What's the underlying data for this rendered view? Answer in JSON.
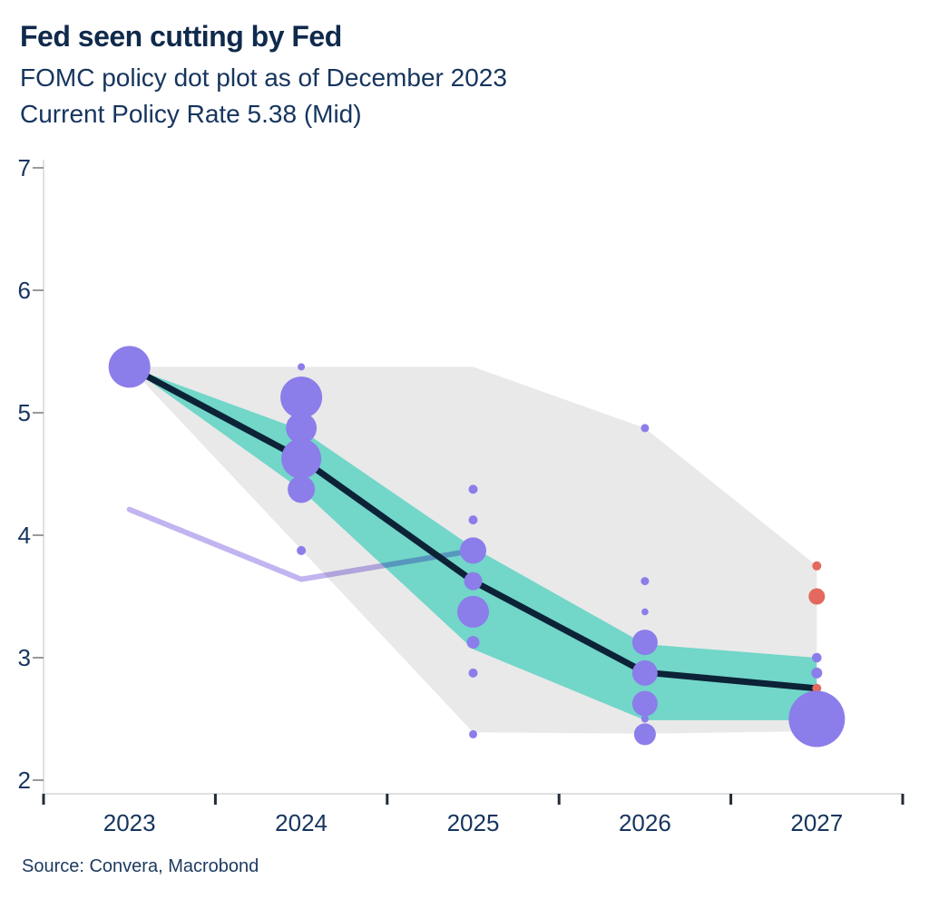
{
  "header": {
    "title": "Fed seen cutting by Fed",
    "subtitle": "FOMC policy dot plot as of December 2023",
    "subtitle2": "Current Policy Rate 5.38 (Mid)"
  },
  "footer": {
    "source": "Source: Convera, Macrobond"
  },
  "chart_data": {
    "type": "scatter",
    "title": "Fed seen cutting by Fed",
    "subtitle": "FOMC policy dot plot as of December 2023",
    "subtitle2": "Current Policy Rate 5.38 (Mid)",
    "source": "Source: Convera, Macrobond",
    "x_categories": [
      "2023",
      "2024",
      "2025",
      "2026",
      "2027"
    ],
    "y_ticks": [
      2,
      3,
      4,
      5,
      6,
      7
    ],
    "y_range": [
      1.9,
      7.05
    ],
    "grid": "off",
    "legend": "none",
    "colors": {
      "purple": "#8b7dea",
      "red": "#e3695f",
      "median_line": "#0c2236",
      "market_line": "#c2b4f0",
      "central_band": "#72d6c9",
      "range_band": "#e9e9e9",
      "axis_text": "#16355e",
      "axis_line": "#d6d6d6",
      "x_tick": "#222b36",
      "y_tick": "#8e8e8e"
    },
    "bands": {
      "full_range": {
        "label": "full-range-of-dots",
        "top": [
          [
            "2023",
            5.375
          ],
          [
            "2025",
            5.375
          ],
          [
            "2026",
            4.875
          ],
          [
            "2027",
            3.75
          ]
        ],
        "bottom": [
          [
            "2023",
            5.375
          ],
          [
            "2025",
            2.39
          ],
          [
            "2026",
            2.38
          ],
          [
            "2027",
            2.4
          ]
        ]
      },
      "central_tendency": {
        "label": "central-tendency-of-dots",
        "top": [
          [
            "2023",
            5.375
          ],
          [
            "2024",
            4.86
          ],
          [
            "2025",
            3.9
          ],
          [
            "2026",
            3.11
          ],
          [
            "2027",
            3.0
          ]
        ],
        "bottom": [
          [
            "2023",
            5.375
          ],
          [
            "2024",
            4.37
          ],
          [
            "2025",
            3.07
          ],
          [
            "2026",
            2.49
          ],
          [
            "2027",
            2.49
          ]
        ]
      }
    },
    "series": [
      {
        "name": "fomc-median-path",
        "color_key": "median_line",
        "width": 7,
        "points": [
          [
            "2023",
            5.375
          ],
          [
            "2024",
            4.625
          ],
          [
            "2025",
            3.625
          ],
          [
            "2026",
            2.88
          ],
          [
            "2027",
            2.75
          ]
        ]
      },
      {
        "name": "market-pricing-path",
        "color_key": "market_line",
        "width": 6,
        "points": [
          [
            "2023",
            4.21
          ],
          [
            "2024",
            3.64
          ],
          [
            "2025",
            3.875
          ]
        ]
      }
    ],
    "dots": [
      {
        "x": "2023",
        "v": 5.375,
        "r": 23,
        "color": "purple"
      },
      {
        "x": "2024",
        "v": 5.375,
        "r": 4,
        "color": "purple"
      },
      {
        "x": "2024",
        "v": 5.125,
        "r": 23,
        "color": "purple"
      },
      {
        "x": "2024",
        "v": 4.875,
        "r": 17,
        "color": "purple"
      },
      {
        "x": "2024",
        "v": 4.625,
        "r": 22,
        "color": "purple"
      },
      {
        "x": "2024",
        "v": 4.375,
        "r": 15,
        "color": "purple"
      },
      {
        "x": "2024",
        "v": 3.875,
        "r": 5,
        "color": "purple"
      },
      {
        "x": "2025",
        "v": 4.375,
        "r": 5,
        "color": "purple"
      },
      {
        "x": "2025",
        "v": 4.125,
        "r": 5,
        "color": "purple"
      },
      {
        "x": "2025",
        "v": 3.875,
        "r": 14.5,
        "color": "purple"
      },
      {
        "x": "2025",
        "v": 3.625,
        "r": 10,
        "color": "purple"
      },
      {
        "x": "2025",
        "v": 3.375,
        "r": 17.5,
        "color": "purple"
      },
      {
        "x": "2025",
        "v": 3.125,
        "r": 7,
        "color": "purple"
      },
      {
        "x": "2025",
        "v": 2.875,
        "r": 5,
        "color": "purple"
      },
      {
        "x": "2025",
        "v": 2.375,
        "r": 4.5,
        "color": "purple"
      },
      {
        "x": "2026",
        "v": 4.875,
        "r": 4.5,
        "color": "purple"
      },
      {
        "x": "2026",
        "v": 3.625,
        "r": 4.5,
        "color": "purple"
      },
      {
        "x": "2026",
        "v": 3.375,
        "r": 3.8,
        "color": "purple"
      },
      {
        "x": "2026",
        "v": 3.125,
        "r": 14,
        "color": "purple"
      },
      {
        "x": "2026",
        "v": 2.875,
        "r": 14,
        "color": "purple"
      },
      {
        "x": "2026",
        "v": 2.5,
        "r": 4,
        "color": "purple"
      },
      {
        "x": "2026",
        "v": 2.625,
        "r": 14,
        "color": "purple"
      },
      {
        "x": "2026",
        "v": 2.375,
        "r": 12,
        "color": "purple"
      },
      {
        "x": "2027",
        "v": 3.75,
        "r": 5,
        "color": "red"
      },
      {
        "x": "2027",
        "v": 3.5,
        "r": 9,
        "color": "red"
      },
      {
        "x": "2027",
        "v": 3.0,
        "r": 5.3,
        "color": "purple"
      },
      {
        "x": "2027",
        "v": 2.875,
        "r": 6,
        "color": "purple"
      },
      {
        "x": "2027",
        "v": 2.75,
        "r": 5,
        "color": "red"
      },
      {
        "x": "2027",
        "v": 2.5,
        "r": 31,
        "color": "purple"
      }
    ]
  }
}
